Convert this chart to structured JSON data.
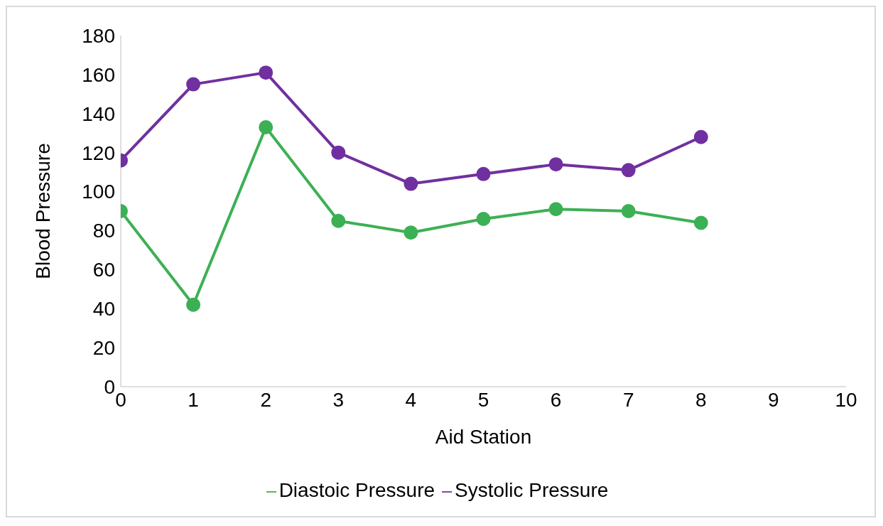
{
  "chart_data": {
    "type": "line",
    "xlabel": "Aid Station",
    "ylabel": "Blood Pressure",
    "x": [
      0,
      1,
      2,
      3,
      4,
      5,
      6,
      7,
      8
    ],
    "series": [
      {
        "name": "Systolic Pressure",
        "color": "#7030a0",
        "values": [
          116,
          155,
          161,
          120,
          104,
          109,
          114,
          111,
          128
        ]
      },
      {
        "name": "Diastoic Pressure",
        "color": "#3cb054",
        "values": [
          90,
          42,
          133,
          85,
          79,
          86,
          91,
          90,
          84
        ]
      }
    ],
    "xlim": [
      0,
      10
    ],
    "xticks": [
      0,
      1,
      2,
      3,
      4,
      5,
      6,
      7,
      8,
      9,
      10
    ],
    "ylim": [
      0,
      180
    ],
    "yticks": [
      0,
      20,
      40,
      60,
      80,
      100,
      120,
      140,
      160,
      180
    ],
    "grid": false,
    "legend": "bottom",
    "marker": "circle",
    "line_style": "solid"
  }
}
